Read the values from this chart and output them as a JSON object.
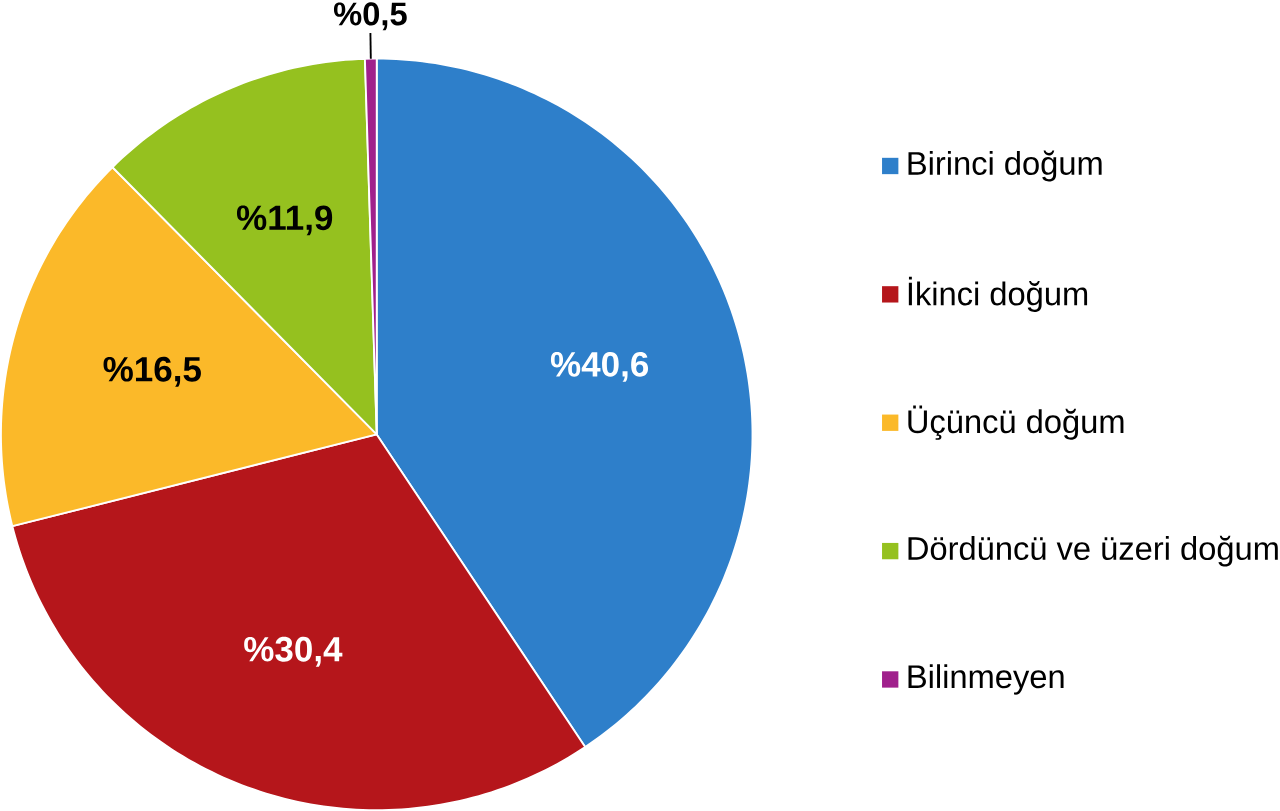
{
  "chart_data": {
    "type": "pie",
    "categories": [
      "Birinci doğum",
      "İkinci doğum",
      "Üçüncü doğum",
      "Dördüncü ve üzeri doğum",
      "Bilinmeyen"
    ],
    "values": [
      40.6,
      30.4,
      16.5,
      11.9,
      0.5
    ],
    "colors": [
      "#2e7fca",
      "#b5161b",
      "#fbb929",
      "#95c11f",
      "#a0208c"
    ],
    "value_labels": [
      "%40,6",
      "%30,4",
      "%16,5",
      "%11,9",
      "%0,5"
    ],
    "legend": "right"
  }
}
